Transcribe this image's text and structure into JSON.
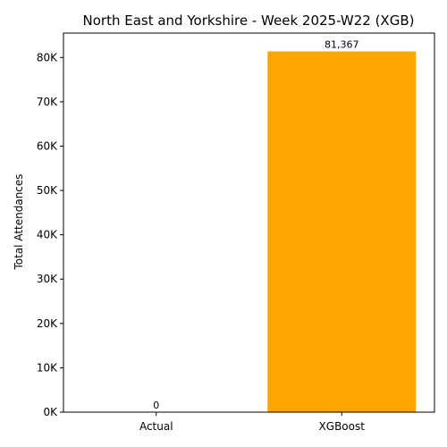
{
  "chart_data": {
    "type": "bar",
    "title": "North East and Yorkshire - Week 2025-W22 (XGB)",
    "xlabel": "",
    "ylabel": "Total Attendances",
    "categories": [
      "Actual",
      "XGBoost"
    ],
    "values": [
      0,
      81367
    ],
    "data_labels": [
      "0",
      "81,367"
    ],
    "bar_colors": [
      "#ffa500",
      "#ffa500"
    ],
    "ylim": [
      0,
      85500
    ],
    "yticks": [
      0,
      10000,
      20000,
      30000,
      40000,
      50000,
      60000,
      70000,
      80000
    ],
    "ytick_labels": [
      "0K",
      "10K",
      "20K",
      "30K",
      "40K",
      "50K",
      "60K",
      "70K",
      "80K"
    ],
    "grid": false,
    "legend": "none"
  }
}
